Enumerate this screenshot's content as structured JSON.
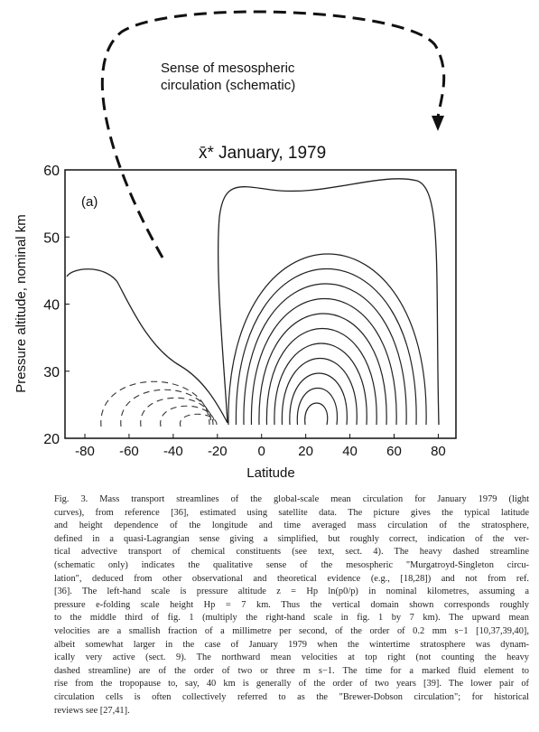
{
  "chart_data": {
    "type": "streamline",
    "title": "x̄* January, 1979",
    "panel_label": "(a)",
    "annotation": [
      "Sense of mesospheric",
      "circulation (schematic)"
    ],
    "xlabel": "Latitude",
    "ylabel": "Pressure altitude, nominal km",
    "xlim": [
      -89,
      88
    ],
    "ylim": [
      20,
      60
    ],
    "xticks": [
      -80,
      -60,
      -40,
      -20,
      0,
      20,
      40,
      60,
      80
    ],
    "yticks": [
      20,
      30,
      40,
      50,
      60
    ]
  },
  "caption": [
    "Fig. 3. Mass transport streamlines of the global-scale mean circulation for January 1979 (light",
    "curves), from reference [36], estimated using satellite data. The picture gives the typical latitude",
    "and height dependence of the longitude and time averaged mass circulation of the stratosphere,",
    "defined in a quasi-Lagrangian sense giving a simplified, but roughly correct, indication of the ver-",
    "tical advective transport of chemical constituents (see text, sect. 4). The heavy dashed streamline",
    "(schematic only) indicates the qualitative sense of the mesospheric \"Murgatroyd-Singleton circu-",
    "lation\", deduced from other observational and theoretical evidence (e.g., [18,28]) and not from ref.",
    "[36]. The left-hand scale is pressure altitude z = Hp ln(p0/p) in nominal kilometres, assuming a",
    "pressure e-folding scale height Hp = 7 km. Thus the vertical domain shown corresponds roughly",
    "to the middle third of fig. 1 (multiply the right-hand scale in fig. 1 by 7 km). The upward mean",
    "velocities are a smallish fraction of a millimetre per second, of the order of 0.2 mm s−1 [10,37,39,40],",
    "albeit somewhat larger in the case of January 1979 when the wintertime stratosphere was dynam-",
    "ically very active (sect. 9). The northward mean velocities at top right (not counting the heavy",
    "dashed streamline) are of the order of two or three m s−1. The time for a marked fluid element to",
    "rise from the tropopause to, say, 40 km is generally of the order of two years [39]. The lower pair of",
    "circulation cells is often collectively referred to as the \"Brewer-Dobson circulation\"; for historical",
    "reviews see [27,41]."
  ]
}
